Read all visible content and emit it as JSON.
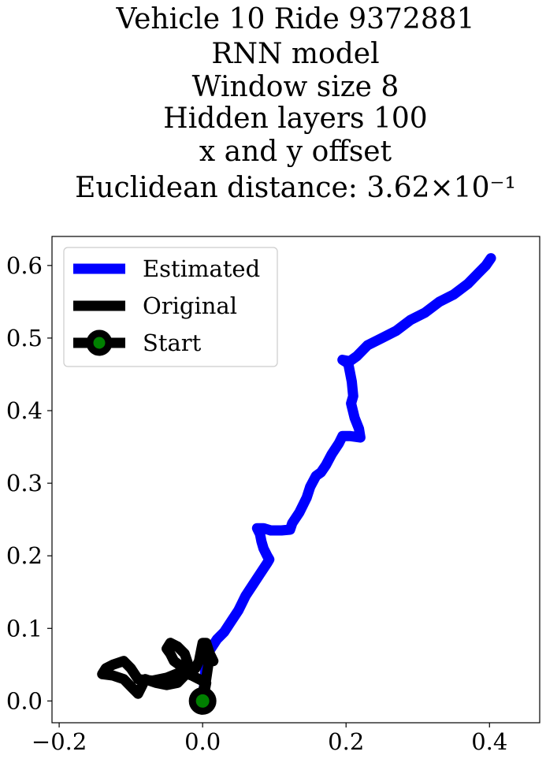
{
  "chart_data": {
    "type": "line",
    "title_lines": [
      "Vehicle 10 Ride 9372881",
      "RNN model",
      "Window size 8",
      "Hidden layers 100",
      "x and y offset",
      "Euclidean distance: 3.62×10⁻¹"
    ],
    "xlabel": "",
    "ylabel": "",
    "xlim": [
      -0.21,
      0.47
    ],
    "ylim": [
      -0.03,
      0.64
    ],
    "x_ticks": [
      -0.2,
      0.0,
      0.2,
      0.4
    ],
    "x_tick_labels": [
      "−0.2",
      "0.0",
      "0.2",
      "0.4"
    ],
    "y_ticks": [
      0.0,
      0.1,
      0.2,
      0.3,
      0.4,
      0.5,
      0.6
    ],
    "y_tick_labels": [
      "0.0",
      "0.1",
      "0.2",
      "0.3",
      "0.4",
      "0.5",
      "0.6"
    ],
    "grid": false,
    "legend_position": "top-left",
    "series": [
      {
        "name": "Estimated",
        "color": "#0000ff",
        "points": [
          [
            0.0,
            0.0
          ],
          [
            0.002,
            0.02
          ],
          [
            0.004,
            0.045
          ],
          [
            0.01,
            0.07
          ],
          [
            0.02,
            0.085
          ],
          [
            0.03,
            0.095
          ],
          [
            0.04,
            0.11
          ],
          [
            0.05,
            0.125
          ],
          [
            0.06,
            0.145
          ],
          [
            0.07,
            0.16
          ],
          [
            0.08,
            0.175
          ],
          [
            0.09,
            0.19
          ],
          [
            0.093,
            0.195
          ],
          [
            0.09,
            0.2
          ],
          [
            0.085,
            0.21
          ],
          [
            0.082,
            0.22
          ],
          [
            0.08,
            0.23
          ],
          [
            0.076,
            0.238
          ],
          [
            0.085,
            0.238
          ],
          [
            0.095,
            0.235
          ],
          [
            0.11,
            0.235
          ],
          [
            0.122,
            0.236
          ],
          [
            0.125,
            0.245
          ],
          [
            0.135,
            0.26
          ],
          [
            0.145,
            0.28
          ],
          [
            0.15,
            0.295
          ],
          [
            0.158,
            0.31
          ],
          [
            0.165,
            0.315
          ],
          [
            0.172,
            0.325
          ],
          [
            0.18,
            0.34
          ],
          [
            0.19,
            0.355
          ],
          [
            0.195,
            0.365
          ],
          [
            0.205,
            0.365
          ],
          [
            0.22,
            0.363
          ],
          [
            0.218,
            0.375
          ],
          [
            0.212,
            0.39
          ],
          [
            0.207,
            0.41
          ],
          [
            0.21,
            0.42
          ],
          [
            0.208,
            0.44
          ],
          [
            0.205,
            0.455
          ],
          [
            0.203,
            0.465
          ],
          [
            0.195,
            0.47
          ],
          [
            0.205,
            0.468
          ],
          [
            0.215,
            0.475
          ],
          [
            0.23,
            0.49
          ],
          [
            0.25,
            0.5
          ],
          [
            0.27,
            0.51
          ],
          [
            0.29,
            0.525
          ],
          [
            0.31,
            0.535
          ],
          [
            0.33,
            0.55
          ],
          [
            0.35,
            0.56
          ],
          [
            0.37,
            0.575
          ],
          [
            0.385,
            0.59
          ],
          [
            0.395,
            0.6
          ],
          [
            0.402,
            0.61
          ]
        ]
      },
      {
        "name": "Original",
        "color": "#000000",
        "points": [
          [
            0.0,
            0.0
          ],
          [
            0.001,
            0.015
          ],
          [
            0.005,
            0.03
          ],
          [
            0.008,
            0.05
          ],
          [
            0.01,
            0.06
          ],
          [
            0.015,
            0.055
          ],
          [
            0.01,
            0.065
          ],
          [
            0.005,
            0.08
          ],
          [
            0.0,
            0.08
          ],
          [
            -0.002,
            0.07
          ],
          [
            -0.005,
            0.055
          ],
          [
            -0.01,
            0.045
          ],
          [
            -0.02,
            0.045
          ],
          [
            -0.03,
            0.048
          ],
          [
            -0.04,
            0.055
          ],
          [
            -0.045,
            0.065
          ],
          [
            -0.05,
            0.072
          ],
          [
            -0.045,
            0.08
          ],
          [
            -0.035,
            0.075
          ],
          [
            -0.025,
            0.065
          ],
          [
            -0.02,
            0.05
          ],
          [
            -0.025,
            0.035
          ],
          [
            -0.035,
            0.025
          ],
          [
            -0.05,
            0.022
          ],
          [
            -0.065,
            0.025
          ],
          [
            -0.08,
            0.03
          ],
          [
            -0.085,
            0.02
          ],
          [
            -0.09,
            0.01
          ],
          [
            -0.1,
            0.02
          ],
          [
            -0.11,
            0.03
          ],
          [
            -0.125,
            0.035
          ],
          [
            -0.14,
            0.037
          ],
          [
            -0.135,
            0.045
          ],
          [
            -0.125,
            0.05
          ],
          [
            -0.11,
            0.055
          ],
          [
            -0.1,
            0.045
          ],
          [
            -0.09,
            0.03
          ],
          [
            -0.07,
            0.028
          ],
          [
            -0.05,
            0.032
          ],
          [
            -0.03,
            0.04
          ],
          [
            -0.015,
            0.035
          ],
          [
            -0.005,
            0.03
          ],
          [
            0.005,
            0.025
          ],
          [
            0.003,
            0.015
          ],
          [
            0.0,
            0.0
          ]
        ]
      }
    ],
    "start": {
      "name": "Start",
      "x": 0.0,
      "y": 0.0,
      "marker_color": "#008000",
      "edge_color": "#000000"
    }
  }
}
